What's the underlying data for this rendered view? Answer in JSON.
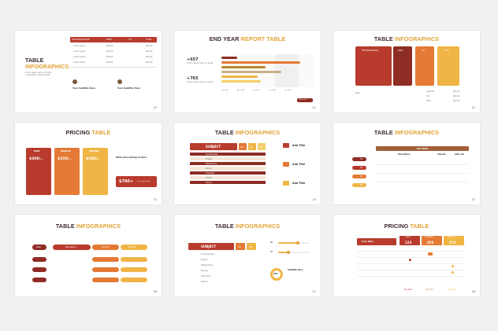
{
  "slides": [
    {
      "title_main": "TABLE",
      "title_accent": "INFOGRAPHICS",
      "page": "10",
      "headers": [
        "ITEM DESCRIPTION",
        "PRICE",
        "QTY",
        "TOTAL"
      ],
      "rows": [
        [
          "Lorem Ipsum",
          "$00.00",
          "1",
          "$00.00"
        ],
        [
          "Lorem Ipsum",
          "$00.00",
          "1",
          "$00.00"
        ],
        [
          "Lorem Ipsum",
          "$00.00",
          "1",
          "$00.00"
        ],
        [
          "Lorem Ipsum",
          "$00.00",
          "1",
          "$00.00"
        ]
      ],
      "sub1": "Your Subtitle Here",
      "sub2": "Your Subtitle Here",
      "body": "Lorem ipsum dolor sit amet consectetur adipiscing elit"
    },
    {
      "title_main": "END YEAR",
      "title_accent": "REPORT TABLE",
      "page": "11",
      "stat1": "+657",
      "stat2": "+765",
      "stat_desc": "Lorem ipsum dolor sit amet",
      "axis": [
        "Jan 2020",
        "Apr 2020",
        "Jul 2020",
        "Oct 2020",
        "Jan 2021",
        "Apr 2021"
      ],
      "button": "Read more"
    },
    {
      "title_main": "TABLE",
      "title_accent": "INFOGRAPHICS",
      "page": "12",
      "headers": [
        "ITEM DESCRIPTION",
        "PRICE",
        "QTY",
        "TOTAL"
      ],
      "foot": [
        "Note",
        "Subtotal",
        "Tax",
        "Total"
      ],
      "foot_val": [
        "$00.00",
        "$00.00",
        "$00.00"
      ]
    },
    {
      "title_main": "PRICING",
      "title_accent": "TABLE",
      "page": "13",
      "plans": [
        "BASIC",
        "REGULAR",
        "PREMIUM"
      ],
      "prices": [
        "$300/..",
        "$250/..",
        "$200/.."
      ],
      "write": "Write Everything In Here",
      "big": "$760+",
      "big_desc": "Lorem ipsum dolor"
    },
    {
      "title_main": "TABLE",
      "title_accent": "INFOGRAPHICS",
      "page": "14",
      "subject": "SUBJECT",
      "cols": [
        "Q1",
        "Q2",
        "Q3"
      ],
      "add": [
        "Add Title",
        "Add Title",
        "Add Title"
      ],
      "rows": [
        "Social Studies",
        "English",
        "Mathematics",
        "Biology",
        "Chemistry",
        "Physics",
        "History"
      ]
    },
    {
      "title_main": "TABLE",
      "title_accent": "INFOGRAPHICS",
      "page": "15",
      "header": "PIE CHART",
      "cols": [
        "Description",
        "Amount",
        "After Tax"
      ],
      "nums": [
        "01",
        "02",
        "03",
        "04"
      ]
    },
    {
      "title_main": "TABLE",
      "title_accent": "INFOGRAPHICS",
      "page": "16",
      "cols": [
        "Date",
        "Description",
        "Amount",
        "Subtotal"
      ]
    },
    {
      "title_main": "TABLE",
      "title_accent": "INFOGRAPHICS",
      "page": "17",
      "subject": "SUBJECT",
      "cols": [
        "Q1",
        "Q2"
      ],
      "rows": [
        "Social Studies",
        "English",
        "Mathematics",
        "Biology",
        "Chemistry",
        "Physics"
      ],
      "slider": [
        "80",
        "45"
      ],
      "pct": "60%",
      "sub": "Subtitle Here"
    },
    {
      "title_main": "PRICING",
      "title_accent": "TABLE",
      "page": "18",
      "cols": [
        "BASIC",
        "STANDARD",
        "PREMIUM"
      ],
      "prices": [
        "123",
        "456",
        "573"
      ],
      "label": "Price Table",
      "buttons": [
        "Buy Now",
        "Buy Now",
        "Buy Now"
      ]
    }
  ]
}
